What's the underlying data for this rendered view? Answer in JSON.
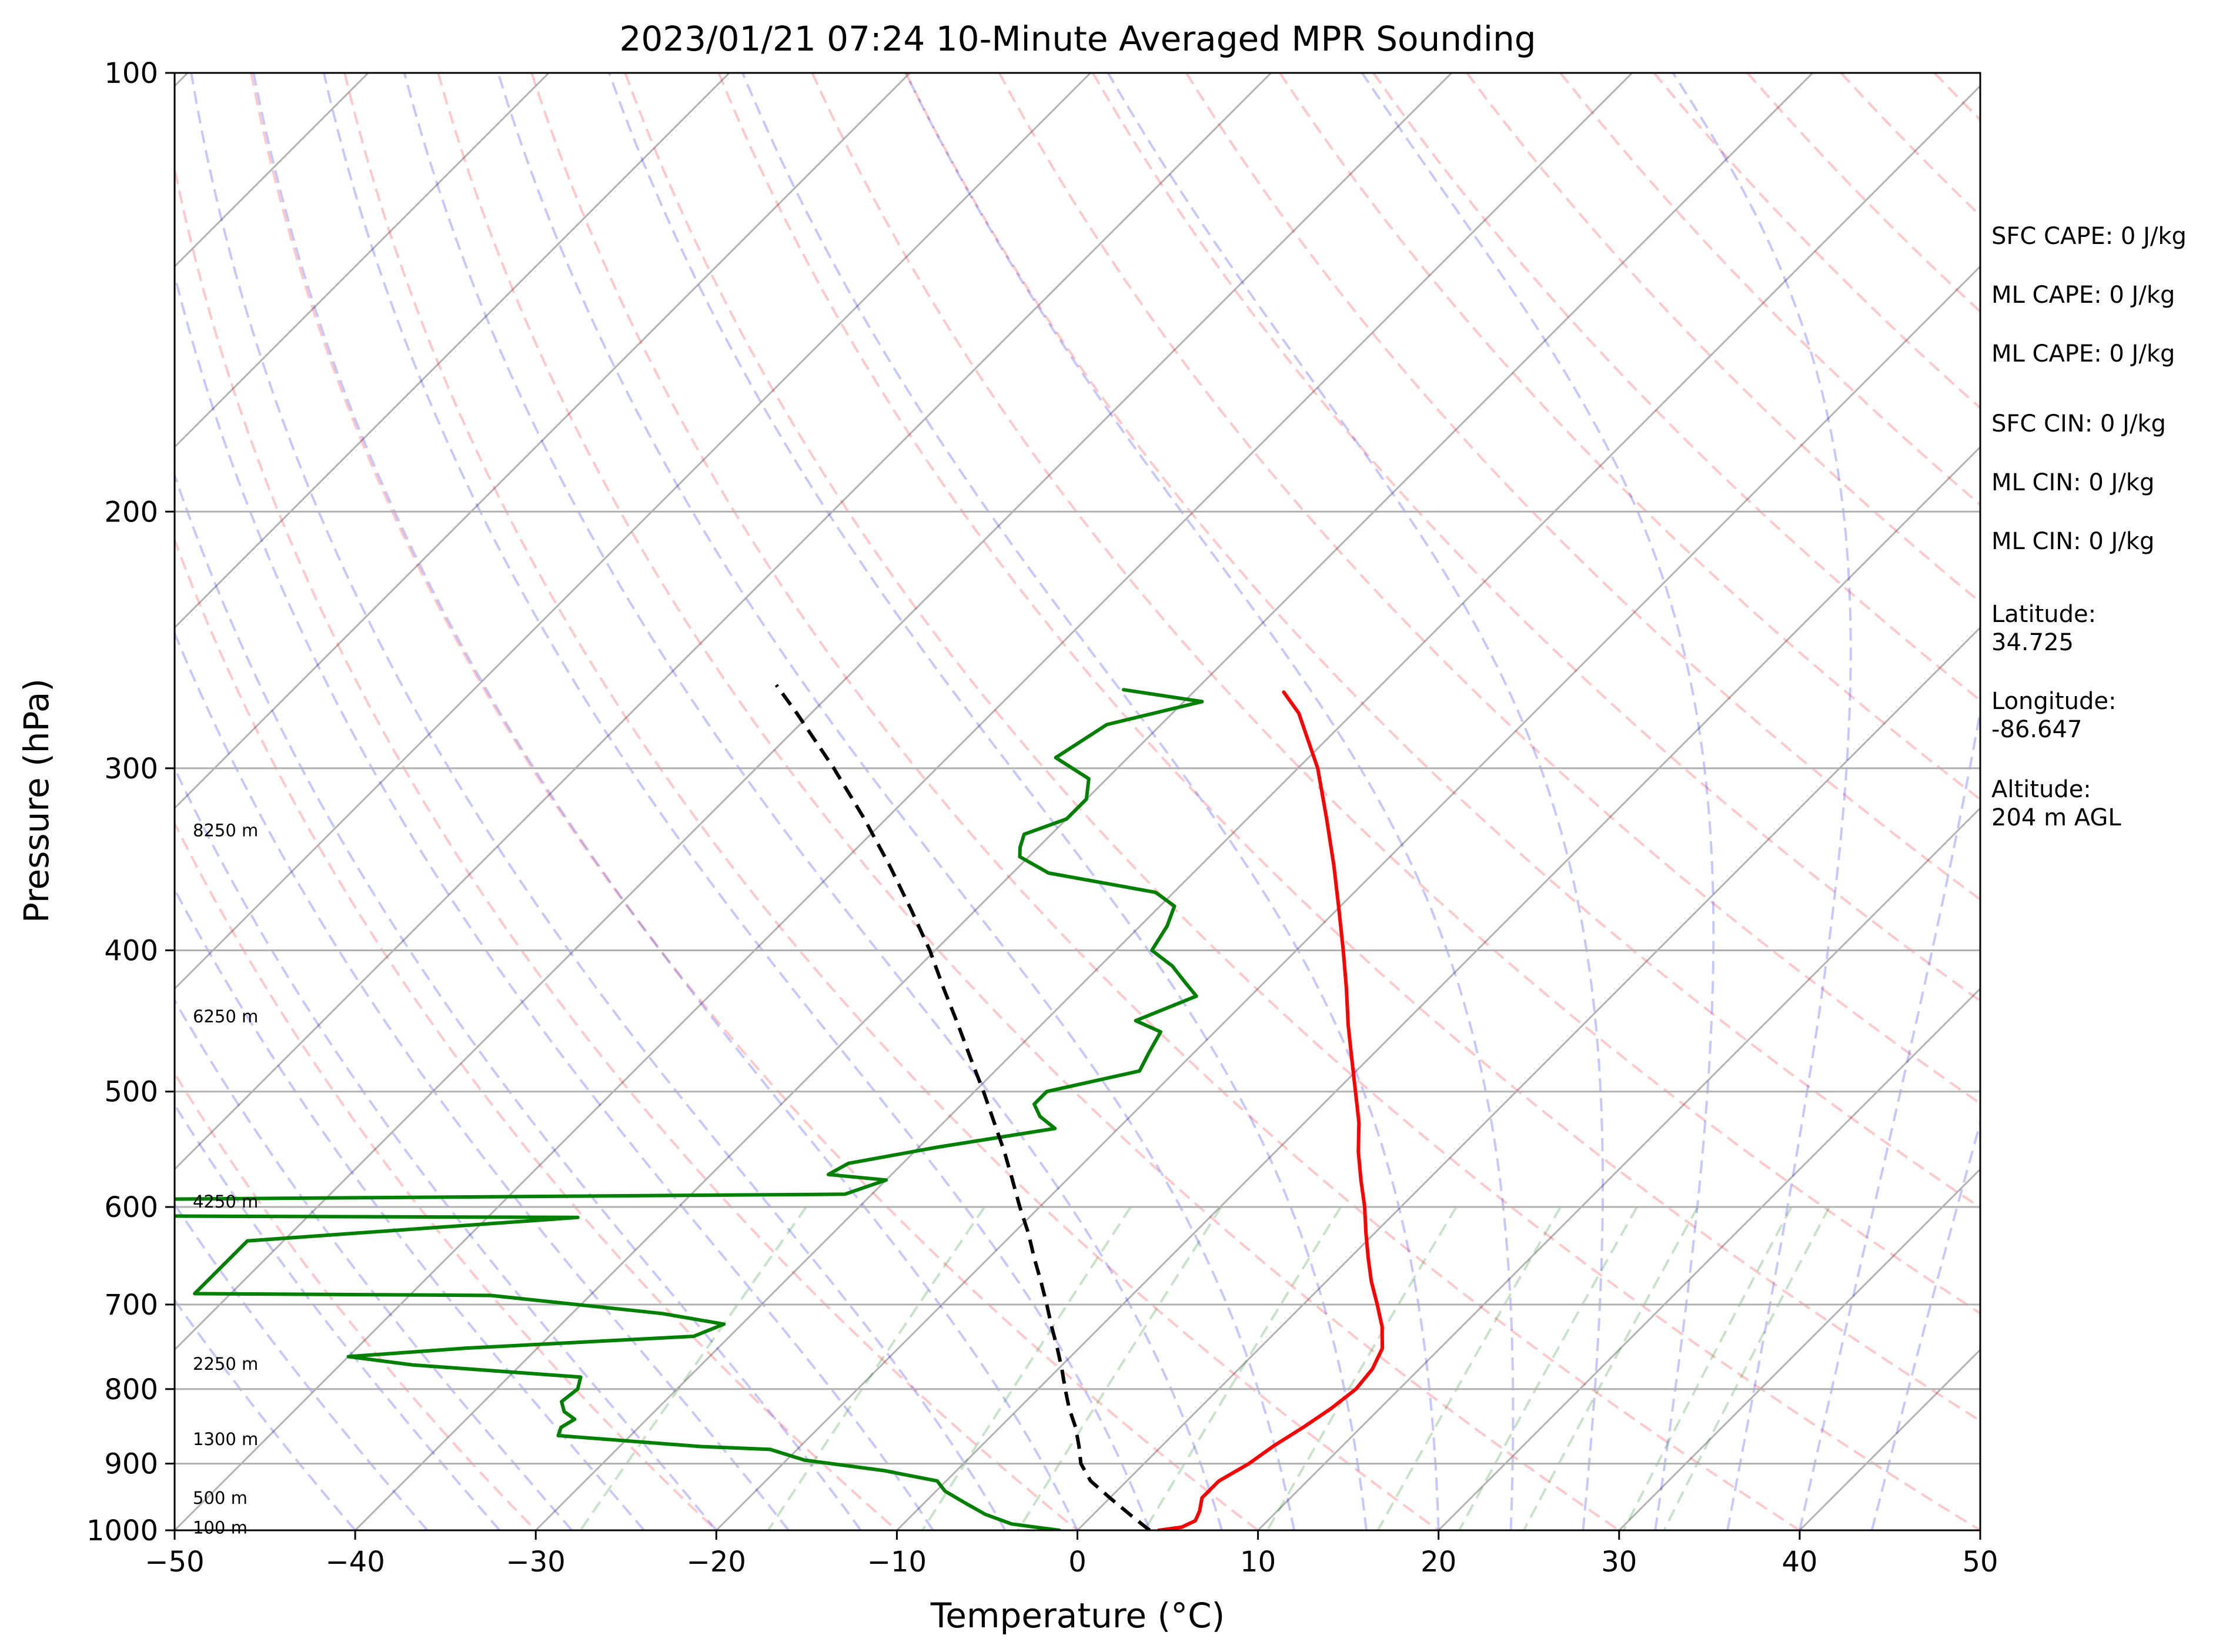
{
  "chart_data": {
    "type": "line",
    "title": "2023/01/21 07:24 10-Minute Averaged MPR Sounding",
    "xlabel": "Temperature (°C)",
    "ylabel": "Pressure (hPa)",
    "xlim": [
      -50,
      50
    ],
    "ylim": [
      1000,
      100
    ],
    "y_scale": "log",
    "skew": "skew-T log-p",
    "x_ticks": [
      "−50",
      "−40",
      "−30",
      "−20",
      "−10",
      "0",
      "10",
      "20",
      "30",
      "40",
      "50"
    ],
    "x_tick_values": [
      -50,
      -40,
      -30,
      -20,
      -10,
      0,
      10,
      20,
      30,
      40,
      50
    ],
    "y_ticks": [
      "100",
      "200",
      "300",
      "400",
      "500",
      "600",
      "700",
      "800",
      "900",
      "1000"
    ],
    "y_tick_values": [
      100,
      200,
      300,
      400,
      500,
      600,
      700,
      800,
      900,
      1000
    ],
    "grid": true,
    "series": [
      {
        "role": "temperature",
        "color": "#ff0000",
        "points": [
          [
            1000,
            4.5
          ],
          [
            995,
            5.6
          ],
          [
            985,
            6.0
          ],
          [
            970,
            5.7
          ],
          [
            950,
            5.1
          ],
          [
            925,
            5.1
          ],
          [
            900,
            5.8
          ],
          [
            875,
            6.2
          ],
          [
            850,
            6.8
          ],
          [
            825,
            7.3
          ],
          [
            800,
            7.6
          ],
          [
            775,
            7.4
          ],
          [
            750,
            6.8
          ],
          [
            725,
            5.6
          ],
          [
            700,
            4.1
          ],
          [
            675,
            2.5
          ],
          [
            650,
            1.0
          ],
          [
            625,
            -0.5
          ],
          [
            600,
            -2.0
          ],
          [
            575,
            -3.7
          ],
          [
            550,
            -5.4
          ],
          [
            525,
            -7.0
          ],
          [
            500,
            -8.9
          ],
          [
            475,
            -10.9
          ],
          [
            450,
            -13.0
          ],
          [
            425,
            -15.1
          ],
          [
            400,
            -17.4
          ],
          [
            375,
            -19.9
          ],
          [
            350,
            -22.6
          ],
          [
            325,
            -25.6
          ],
          [
            300,
            -28.9
          ],
          [
            275,
            -33.0
          ],
          [
            266,
            -35.0
          ]
        ]
      },
      {
        "role": "dewpoint",
        "color": "#008000",
        "points": [
          [
            1000,
            -1.0
          ],
          [
            990,
            -4.0
          ],
          [
            975,
            -6.0
          ],
          [
            960,
            -7.5
          ],
          [
            950,
            -8.5
          ],
          [
            940,
            -9.5
          ],
          [
            925,
            -10.5
          ],
          [
            910,
            -14.0
          ],
          [
            895,
            -19.0
          ],
          [
            880,
            -21.5
          ],
          [
            876,
            -25.5
          ],
          [
            861,
            -34.0
          ],
          [
            850,
            -34.3
          ],
          [
            839,
            -34.0
          ],
          [
            829,
            -35.0
          ],
          [
            816,
            -35.7
          ],
          [
            800,
            -35.5
          ],
          [
            785,
            -36.0
          ],
          [
            770,
            -46.0
          ],
          [
            760,
            -50.0
          ],
          [
            750,
            -44.0
          ],
          [
            736,
            -32.0
          ],
          [
            722,
            -31.0
          ],
          [
            710,
            -35.0
          ],
          [
            690,
            -45.5
          ],
          [
            688,
            -62.0
          ],
          [
            633,
            -62.0
          ],
          [
            610,
            -45.0
          ],
          [
            608,
            -80.0
          ],
          [
            594,
            -80.0
          ],
          [
            588,
            -31.5
          ],
          [
            575,
            -30.0
          ],
          [
            570,
            -33.5
          ],
          [
            560,
            -33.0
          ],
          [
            546,
            -29.0
          ],
          [
            530,
            -23.5
          ],
          [
            520,
            -25.0
          ],
          [
            510,
            -26.0
          ],
          [
            500,
            -26.0
          ],
          [
            484,
            -22.0
          ],
          [
            470,
            -22.5
          ],
          [
            455,
            -23.0
          ],
          [
            447,
            -25.0
          ],
          [
            430,
            -23.0
          ],
          [
            420,
            -24.5
          ],
          [
            410,
            -26.0
          ],
          [
            400,
            -28.0
          ],
          [
            385,
            -28.5
          ],
          [
            373,
            -29.2
          ],
          [
            365,
            -31.0
          ],
          [
            354,
            -38.0
          ],
          [
            345,
            -40.5
          ],
          [
            340,
            -41.0
          ],
          [
            333,
            -41.5
          ],
          [
            325,
            -40.0
          ],
          [
            315,
            -40.0
          ],
          [
            305,
            -41.0
          ],
          [
            295,
            -44.0
          ],
          [
            280,
            -43.0
          ],
          [
            270,
            -39.0
          ],
          [
            265,
            -44.0
          ]
        ]
      },
      {
        "role": "parcel-profile",
        "color": "#000000",
        "style": "dashed",
        "points": [
          [
            1000,
            4.0
          ],
          [
            975,
            2.0
          ],
          [
            950,
            0.0
          ],
          [
            925,
            -2.0
          ],
          [
            900,
            -3.5
          ],
          [
            875,
            -4.6
          ],
          [
            850,
            -5.8
          ],
          [
            825,
            -7.2
          ],
          [
            800,
            -8.5
          ],
          [
            775,
            -9.8
          ],
          [
            750,
            -11.2
          ],
          [
            725,
            -12.7
          ],
          [
            700,
            -14.2
          ],
          [
            675,
            -15.8
          ],
          [
            650,
            -17.5
          ],
          [
            625,
            -19.2
          ],
          [
            600,
            -21.1
          ],
          [
            575,
            -23.0
          ],
          [
            550,
            -25.0
          ],
          [
            525,
            -27.2
          ],
          [
            500,
            -29.5
          ],
          [
            475,
            -32.0
          ],
          [
            450,
            -34.6
          ],
          [
            425,
            -37.4
          ],
          [
            400,
            -40.3
          ],
          [
            375,
            -43.6
          ],
          [
            350,
            -47.2
          ],
          [
            325,
            -51.2
          ],
          [
            300,
            -55.7
          ],
          [
            275,
            -60.8
          ],
          [
            263,
            -63.5
          ]
        ]
      }
    ],
    "background_lines": [
      {
        "role": "dry-adiabats",
        "color": "#ff0000",
        "opacity": 0.22,
        "style": "dashed"
      },
      {
        "role": "moist-adiabats",
        "color": "#0000ff",
        "opacity": 0.22,
        "style": "dashed"
      },
      {
        "role": "mixing-ratio-lines",
        "color": "#008000",
        "opacity": 0.22,
        "style": "dashed"
      },
      {
        "role": "skewed-isotherms",
        "color": "#808080",
        "opacity": 0.6,
        "style": "solid"
      }
    ],
    "height_labels": [
      {
        "label": "100 m",
        "pressure": 996
      },
      {
        "label": "500 m",
        "pressure": 950
      },
      {
        "label": "1300 m",
        "pressure": 866
      },
      {
        "label": "2250 m",
        "pressure": 769
      },
      {
        "label": "4250 m",
        "pressure": 595
      },
      {
        "label": "6250 m",
        "pressure": 444
      },
      {
        "label": "8250 m",
        "pressure": 331
      }
    ],
    "side_stats": [
      "SFC CAPE: 0 J/kg",
      "ML CAPE: 0 J/kg",
      "ML CAPE: 0 J/kg",
      "SFC CIN: 0 J/kg",
      "ML CIN: 0 J/kg",
      "ML CIN: 0 J/kg",
      "Latitude:",
      "34.725",
      "Longitude:",
      "-86.647",
      "Altitude:",
      "204 m AGL"
    ]
  }
}
